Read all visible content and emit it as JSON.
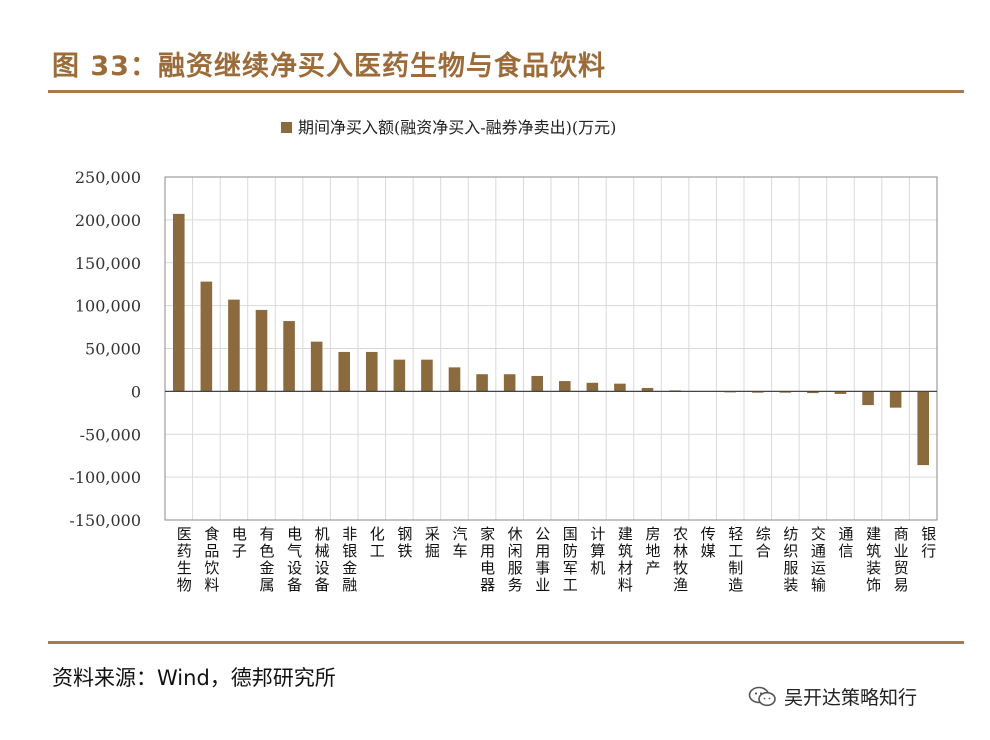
{
  "figure": {
    "title": "图 33：融资继续净买入医药生物与食品饮料",
    "source": "资料来源：Wind，德邦研究所",
    "watermark": "吴开达策略知行",
    "watermark_icon": "wechat-icon"
  },
  "colors": {
    "accent": "#9c6b3a",
    "bar": "#8b6a3e",
    "rule": "#a47a52",
    "grid": "#d9d9d9"
  },
  "chart_data": {
    "type": "bar",
    "categories": [
      "医药生物",
      "食品饮料",
      "电子",
      "有色金属",
      "电气设备",
      "机械设备",
      "非银金融",
      "化工",
      "钢铁",
      "采掘",
      "汽车",
      "家用电器",
      "休闲服务",
      "公用事业",
      "国防军工",
      "计算机",
      "建筑材料",
      "房地产",
      "农林牧渔",
      "传媒",
      "轻工制造",
      "综合",
      "纺织服装",
      "交通运输",
      "通信",
      "建筑装饰",
      "商业贸易",
      "银行"
    ],
    "series": [
      {
        "name": "期间净买入额(融资净买入-融券净卖出)(万元)",
        "values": [
          207000,
          128000,
          107000,
          95000,
          82000,
          58000,
          46000,
          46000,
          37000,
          37000,
          28000,
          20000,
          20000,
          18000,
          12000,
          10000,
          9000,
          4000,
          1000,
          0,
          -1000,
          -1500,
          -1500,
          -2000,
          -3000,
          -16000,
          -19000,
          -86000
        ]
      }
    ],
    "ylim": [
      -150000,
      250000
    ],
    "yticks": [
      "250,000",
      "200,000",
      "150,000",
      "100,000",
      "50,000",
      "0",
      "-50,000",
      "-100,000",
      "-150,000"
    ],
    "ytick_values": [
      250000,
      200000,
      150000,
      100000,
      50000,
      0,
      -50000,
      -100000,
      -150000
    ],
    "grid": true,
    "legend_position": "top-center"
  }
}
